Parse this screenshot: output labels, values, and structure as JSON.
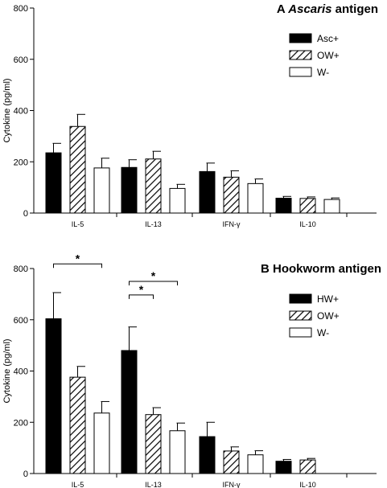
{
  "chart_data": [
    {
      "type": "bar",
      "panel": "A",
      "title_prefix": "A ",
      "title_emph": "Ascaris",
      "title_suffix": " antigen",
      "ylabel": "Cytokine (pg/ml)",
      "ylim": [
        0,
        800
      ],
      "yticks": [
        "0",
        "200",
        "400",
        "600",
        "800"
      ],
      "categories": [
        "IL-5",
        "IL-13",
        "IFN-γ",
        "IL-10"
      ],
      "legend_position": "top-right",
      "series": [
        {
          "name": "Asc+",
          "pattern": "solid-black",
          "values": [
            235,
            178,
            162,
            58
          ],
          "errors": [
            37,
            30,
            33,
            7
          ]
        },
        {
          "name": "OW+",
          "pattern": "hatched",
          "values": [
            338,
            211,
            140,
            57
          ],
          "errors": [
            47,
            30,
            25,
            6
          ]
        },
        {
          "name": "W-",
          "pattern": "white",
          "values": [
            176,
            96,
            115,
            53
          ],
          "errors": [
            38,
            16,
            18,
            6
          ]
        }
      ],
      "significance": []
    },
    {
      "type": "bar",
      "panel": "B",
      "title_prefix": "B Hookworm antigen",
      "title_emph": "",
      "title_suffix": "",
      "ylabel": "Cytokine (pg/ml)",
      "ylim": [
        0,
        800
      ],
      "yticks": [
        "0",
        "200",
        "400",
        "600",
        "800"
      ],
      "categories": [
        "IL-5",
        "IL-13",
        "IFN-γ",
        "IL-10"
      ],
      "legend_position": "top-right",
      "series": [
        {
          "name": "HW+",
          "pattern": "solid-black",
          "values": [
            604,
            480,
            144,
            48
          ],
          "errors": [
            102,
            92,
            56,
            7
          ]
        },
        {
          "name": "OW+",
          "pattern": "hatched",
          "values": [
            376,
            230,
            88,
            53
          ],
          "errors": [
            42,
            27,
            16,
            6
          ]
        },
        {
          "name": "W-",
          "pattern": "white",
          "values": [
            236,
            167,
            73,
            0
          ],
          "errors": [
            45,
            30,
            16,
            0
          ]
        }
      ],
      "significance": [
        {
          "category": 0,
          "from_series": 0,
          "to_series": 2,
          "level": 818,
          "label": "*"
        },
        {
          "category": 1,
          "from_series": 0,
          "to_series": 1,
          "level": 697,
          "label": "*"
        },
        {
          "category": 1,
          "from_series": 0,
          "to_series": 2,
          "level": 750,
          "label": "*"
        }
      ]
    }
  ]
}
